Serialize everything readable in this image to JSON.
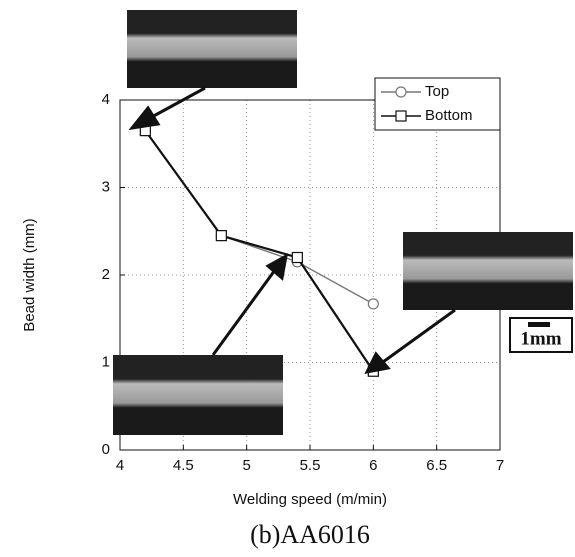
{
  "chart_data": {
    "type": "line",
    "x_label": "Welding speed (m/min)",
    "y_label": "Bead width (mm)",
    "caption": "(b)AA6016",
    "annotation": "1mm",
    "x": [
      4.2,
      4.8,
      5.4,
      6.0
    ],
    "series": [
      {
        "name": "Top",
        "color": "#777777",
        "marker": "circle",
        "values": [
          3.65,
          2.45,
          2.15,
          1.67
        ]
      },
      {
        "name": "Bottom",
        "color": "#111111",
        "marker": "square",
        "values": [
          3.65,
          2.45,
          2.2,
          0.9
        ]
      }
    ],
    "xlim": [
      4,
      7
    ],
    "xticks": [
      4,
      4.5,
      5,
      5.5,
      6,
      6.5,
      7
    ],
    "ylim": [
      0,
      4
    ],
    "yticks": [
      0,
      1,
      2,
      3,
      4
    ],
    "grid": true,
    "legend": "upper right"
  }
}
